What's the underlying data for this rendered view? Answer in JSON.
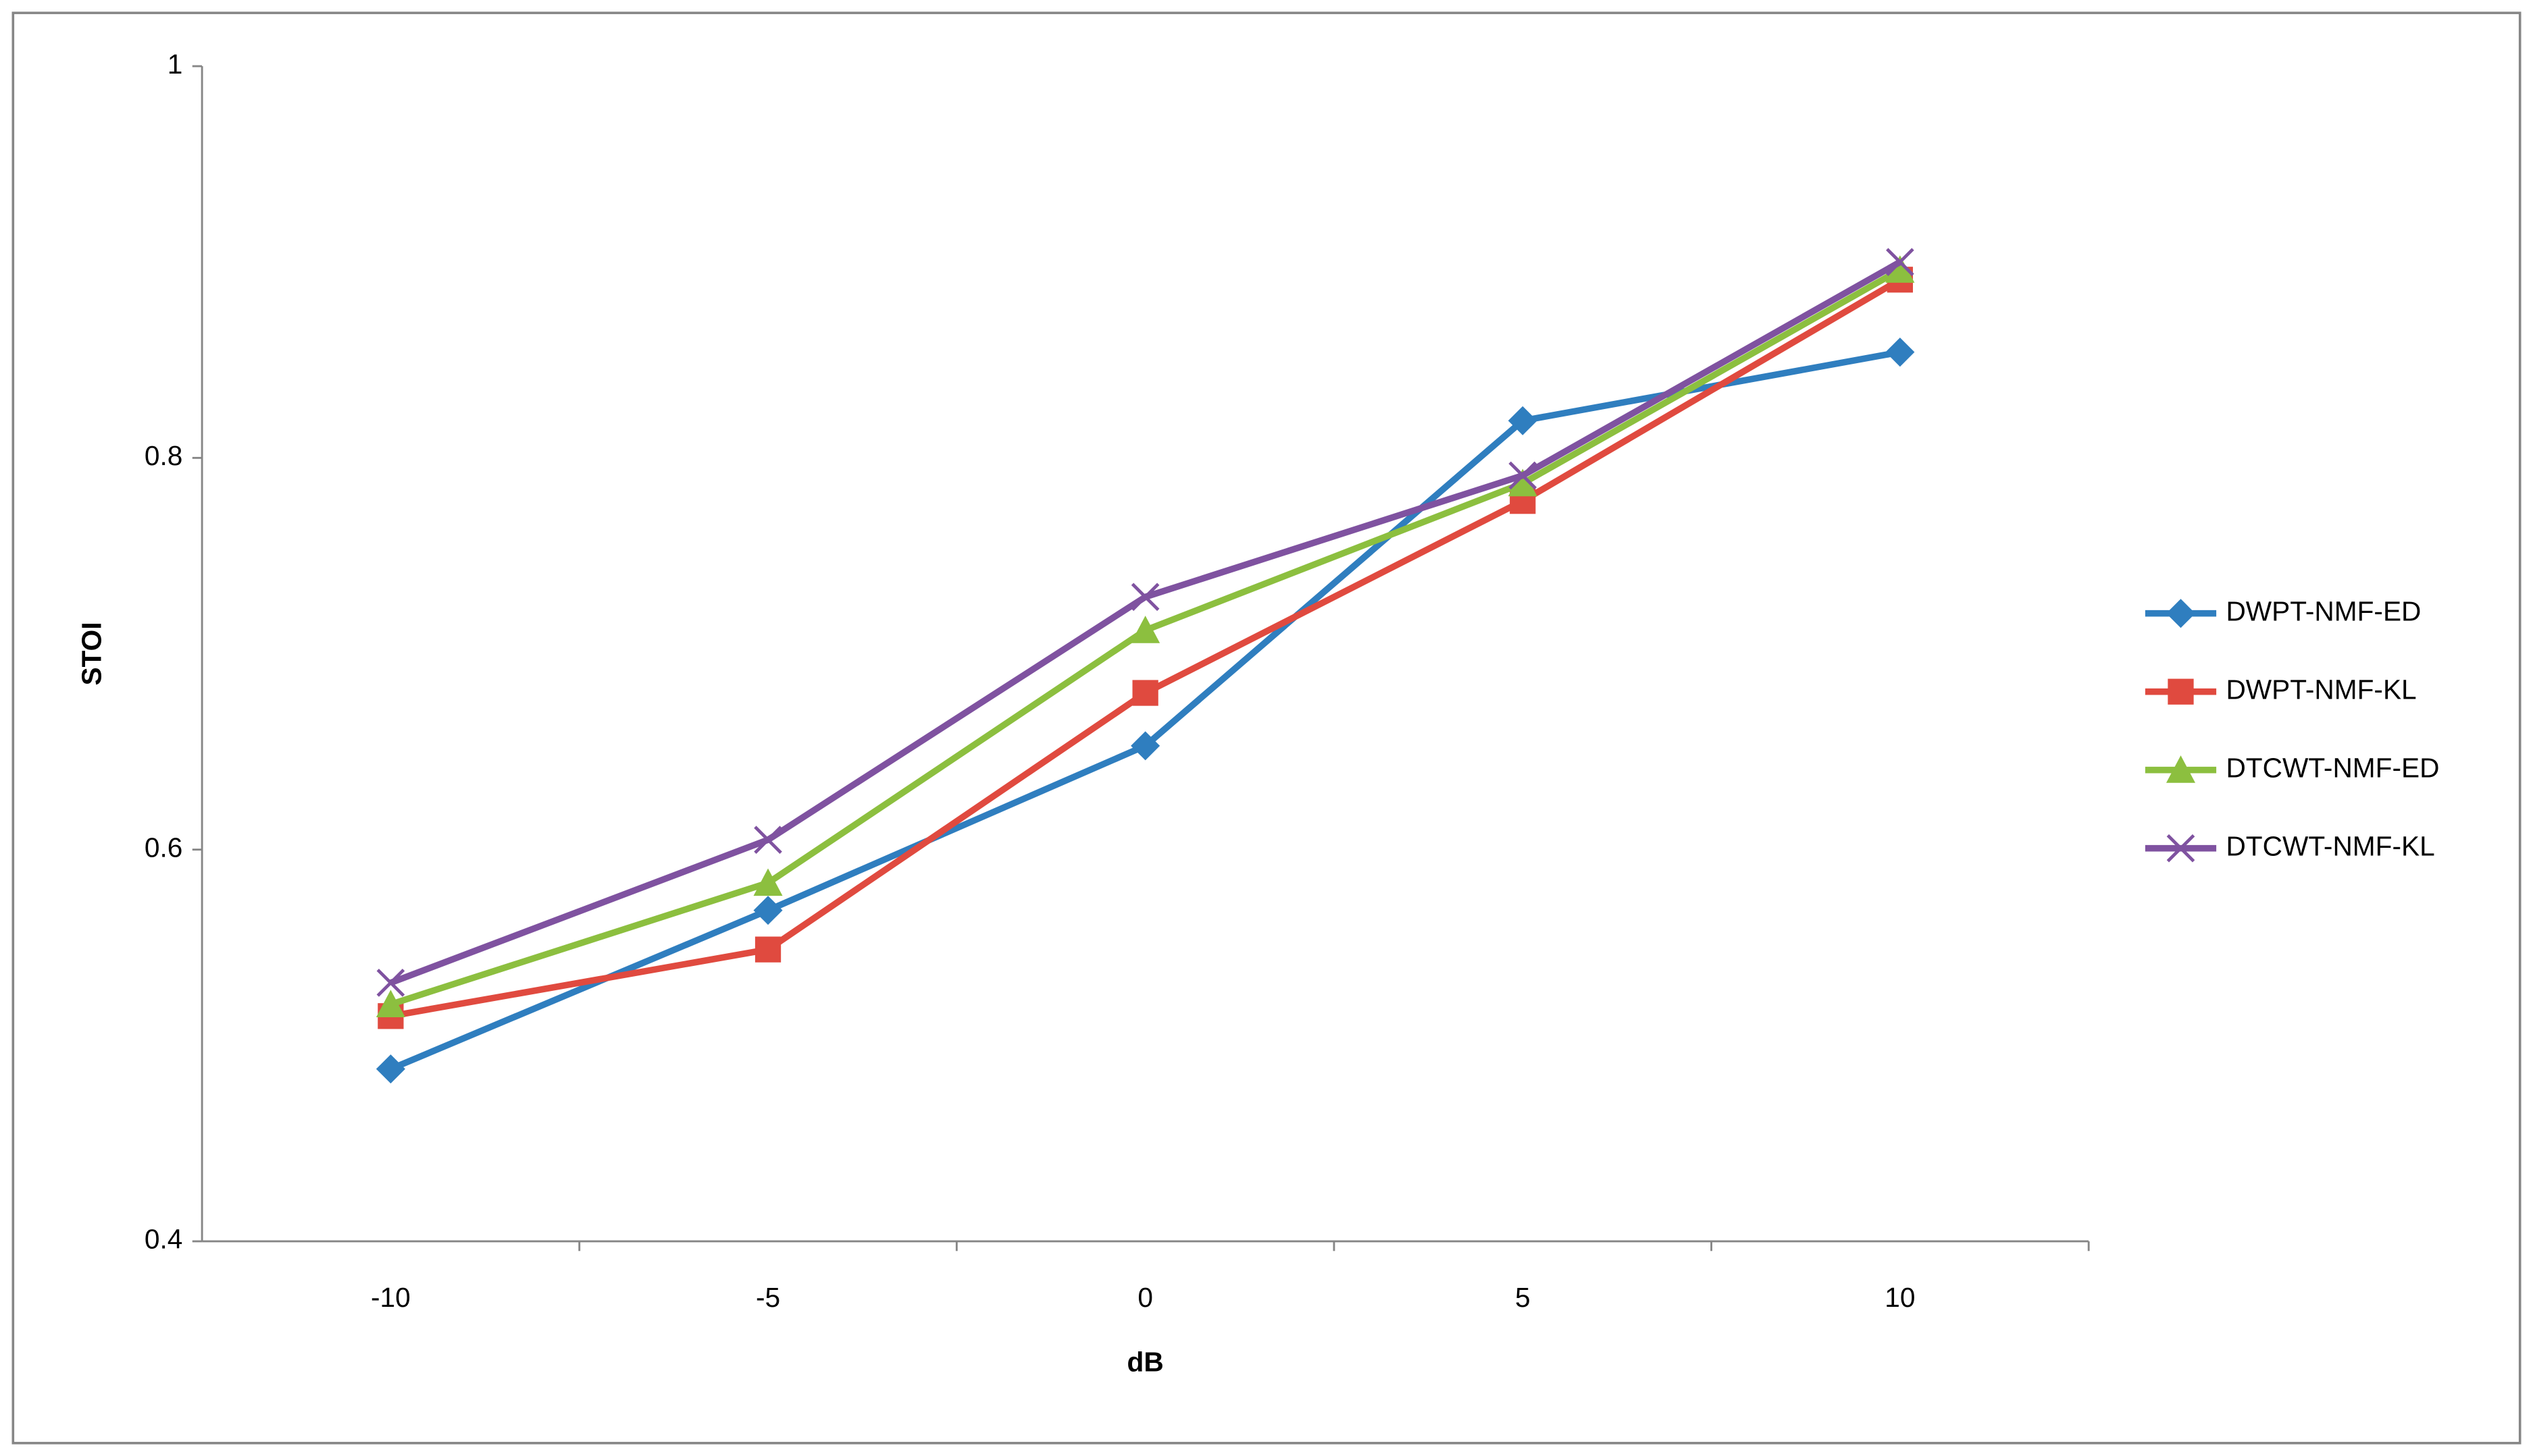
{
  "chart_data": {
    "type": "line",
    "x_label": "dB",
    "y_label": "STOI",
    "categories": [
      "-10",
      "-5",
      "0",
      "5",
      "10"
    ],
    "series": [
      {
        "name": "DWPT-NMF-ED",
        "color": "#2f7ebf",
        "marker": "diamond",
        "values": [
          0.488,
          0.569,
          0.653,
          0.819,
          0.854
        ]
      },
      {
        "name": "DWPT-NMF-KL",
        "color": "#e04a3f",
        "marker": "square",
        "values": [
          0.515,
          0.549,
          0.68,
          0.778,
          0.891
        ]
      },
      {
        "name": "DTCWT-NMF-ED",
        "color": "#8cbf3f",
        "marker": "triangle",
        "values": [
          0.521,
          0.583,
          0.712,
          0.787,
          0.896
        ]
      },
      {
        "name": "DTCWT-NMF-KL",
        "color": "#7f52a0",
        "marker": "x",
        "values": [
          0.532,
          0.605,
          0.729,
          0.791,
          0.9
        ]
      }
    ],
    "ylim": [
      0.4,
      1
    ],
    "yticks": [
      0.4,
      0.6,
      0.8,
      1
    ],
    "grid": false,
    "legend": "right"
  }
}
